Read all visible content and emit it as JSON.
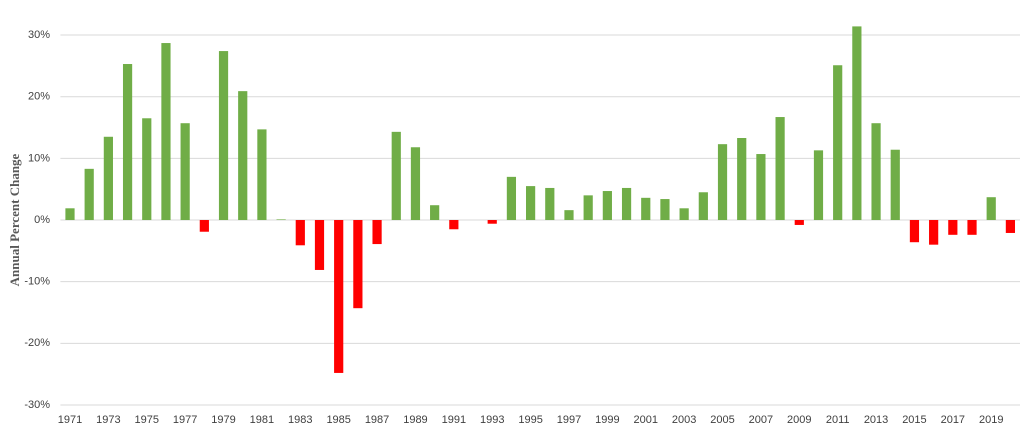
{
  "chart_data": {
    "type": "bar",
    "y_label": "Annual Percent Change",
    "categories": [
      "1971",
      null,
      "1973",
      null,
      "1975",
      null,
      "1977",
      null,
      "1979",
      null,
      "1981",
      null,
      "1983",
      null,
      "1985",
      null,
      "1987",
      null,
      "1989",
      null,
      "1991",
      null,
      "1993",
      null,
      "1995",
      null,
      "1997",
      null,
      "1999",
      null,
      "2001",
      null,
      "2003",
      null,
      "2005",
      null,
      "2007",
      null,
      "2009",
      null,
      "2011",
      null,
      "2013",
      null,
      "2015",
      null,
      "2017",
      null,
      "2019",
      null
    ],
    "values": [
      1.9,
      8.3,
      13.5,
      25.3,
      16.5,
      28.7,
      15.7,
      -1.9,
      27.4,
      20.9,
      14.7,
      0.1,
      -4.1,
      -8.1,
      -24.8,
      -14.3,
      -3.9,
      14.3,
      11.8,
      2.4,
      -1.5,
      0,
      -0.6,
      7.0,
      5.5,
      5.2,
      1.6,
      4.0,
      4.7,
      5.2,
      3.6,
      3.4,
      1.9,
      4.5,
      12.3,
      13.3,
      10.7,
      16.7,
      -0.8,
      11.3,
      25.1,
      31.4,
      15.7,
      11.4,
      -3.6,
      -4.0,
      -2.4,
      -2.4,
      3.7,
      -2.1
    ],
    "positive_color": "#70ad47",
    "negative_color": "#ff0000",
    "ylim": [
      -30,
      32
    ],
    "yticks": [
      {
        "value": -30,
        "label": "-30%"
      },
      {
        "value": -20,
        "label": "-20%"
      },
      {
        "value": -10,
        "label": "-10%"
      },
      {
        "value": 0,
        "label": "0%"
      },
      {
        "value": 10,
        "label": "10%"
      },
      {
        "value": 20,
        "label": "20%"
      },
      {
        "value": 30,
        "label": "30%"
      }
    ],
    "grid": true
  }
}
